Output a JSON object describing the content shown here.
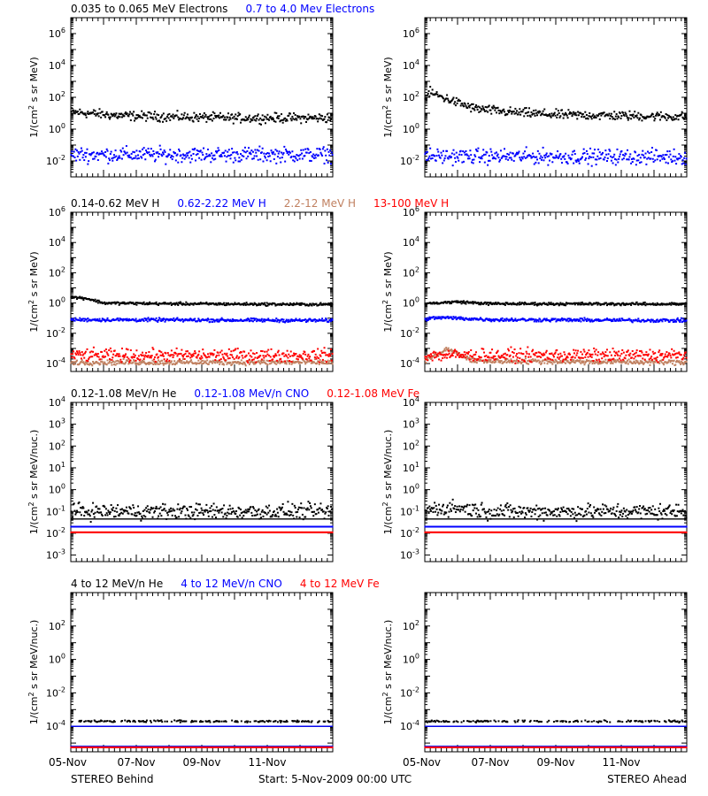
{
  "footer": {
    "left": "STEREO Behind",
    "center": "Start:  5-Nov-2009 00:00 UTC",
    "right": "STEREO Ahead"
  },
  "x_tick_labels": [
    "05-Nov",
    "07-Nov",
    "09-Nov",
    "11-Nov"
  ],
  "chart_data": [
    {
      "type": "scatter",
      "row": 1,
      "legend": [
        {
          "text": "0.035 to 0.065 MeV Electrons",
          "color": "#000000"
        },
        {
          "text": "0.7 to 4.0 Mev Electrons",
          "color": "#0000ff"
        }
      ],
      "ylabel": "1/(cm<sup>2</sup> s sr MeV)",
      "yscale": "log",
      "ylim": [
        0.001,
        10000000
      ],
      "ytick_exponents": [
        -2,
        0,
        2,
        4,
        6
      ],
      "xlim_days": [
        0,
        8
      ],
      "panels": {
        "behind": [
          {
            "name": "0.035 to 0.065 MeV Electrons",
            "color": "#000000",
            "profile": [
              [
                0,
                12
              ],
              [
                0.5,
                10
              ],
              [
                1.5,
                7
              ],
              [
                3,
                6
              ],
              [
                5,
                5
              ],
              [
                8,
                5
              ]
            ],
            "noise": 0.25
          },
          {
            "name": "0.7 to 4.0 Mev Electrons",
            "color": "#0000ff",
            "profile": [
              [
                0,
                0.025
              ],
              [
                8,
                0.025
              ]
            ],
            "noise": 0.4
          }
        ],
        "ahead": [
          {
            "name": "0.035 to 0.065 MeV Electrons",
            "color": "#000000",
            "profile": [
              [
                0,
                80
              ],
              [
                0.15,
                200
              ],
              [
                0.6,
                90
              ],
              [
                1.5,
                20
              ],
              [
                2.5,
                12
              ],
              [
                4,
                8
              ],
              [
                8,
                6
              ]
            ],
            "noise": 0.25
          },
          {
            "name": "0.7 to 4.0 Mev Electrons",
            "color": "#0000ff",
            "profile": [
              [
                0,
                0.02
              ],
              [
                8,
                0.018
              ]
            ],
            "noise": 0.4
          }
        ]
      }
    },
    {
      "type": "scatter",
      "row": 2,
      "legend": [
        {
          "text": "0.14-0.62 MeV H",
          "color": "#000000"
        },
        {
          "text": "0.62-2.22 MeV H",
          "color": "#0000ff"
        },
        {
          "text": "2.2-12 MeV H",
          "color": "#c08060"
        },
        {
          "text": "13-100 MeV H",
          "color": "#ff0000"
        }
      ],
      "ylabel": "1/(cm<sup>2</sup> s sr MeV)",
      "yscale": "log",
      "ylim": [
        3e-05,
        1000000
      ],
      "ytick_exponents": [
        -4,
        -2,
        0,
        2,
        4,
        6
      ],
      "xlim_days": [
        0,
        8
      ],
      "panels": {
        "behind": [
          {
            "name": "0.14-0.62 MeV H",
            "color": "#000000",
            "profile": [
              [
                0,
                2.5
              ],
              [
                0.5,
                2
              ],
              [
                1,
                1
              ],
              [
                3,
                0.9
              ],
              [
                8,
                0.8
              ]
            ],
            "noise": 0.08
          },
          {
            "name": "0.62-2.22 MeV H",
            "color": "#0000ff",
            "profile": [
              [
                0,
                0.08
              ],
              [
                8,
                0.07
              ]
            ],
            "noise": 0.1
          },
          {
            "name": "2.2-12 MeV H",
            "color": "#c08060",
            "profile": [
              [
                0,
                0.00012
              ],
              [
                8,
                0.00012
              ]
            ],
            "noise": 0.15
          },
          {
            "name": "13-100 MeV H",
            "color": "#ff0000",
            "profile": [
              [
                0,
                0.00035
              ],
              [
                8,
                0.00035
              ]
            ],
            "noise": 0.35
          }
        ],
        "ahead": [
          {
            "name": "0.14-0.62 MeV H",
            "color": "#000000",
            "profile": [
              [
                0,
                0.9
              ],
              [
                1,
                1.2
              ],
              [
                2,
                0.9
              ],
              [
                8,
                0.85
              ]
            ],
            "noise": 0.08
          },
          {
            "name": "0.62-2.22 MeV H",
            "color": "#0000ff",
            "profile": [
              [
                0,
                0.09
              ],
              [
                0.5,
                0.11
              ],
              [
                2,
                0.08
              ],
              [
                8,
                0.07
              ]
            ],
            "noise": 0.1
          },
          {
            "name": "2.2-12 MeV H",
            "color": "#c08060",
            "profile": [
              [
                0,
                0.00015
              ],
              [
                0.7,
                0.0009
              ],
              [
                1.5,
                0.00015
              ],
              [
                8,
                0.00012
              ]
            ],
            "noise": 0.15
          },
          {
            "name": "13-100 MeV H",
            "color": "#ff0000",
            "profile": [
              [
                0,
                0.00035
              ],
              [
                8,
                0.00035
              ]
            ],
            "noise": 0.35
          }
        ]
      }
    },
    {
      "type": "scatter",
      "row": 3,
      "legend": [
        {
          "text": "0.12-1.08 MeV/n He",
          "color": "#000000"
        },
        {
          "text": "0.12-1.08 MeV/n CNO",
          "color": "#0000ff"
        },
        {
          "text": "0.12-1.08 MeV Fe",
          "color": "#ff0000"
        }
      ],
      "ylabel": "1/(cm<sup>2</sup> s sr MeV/nuc.)",
      "yscale": "log",
      "ylim": [
        0.0005,
        10000
      ],
      "ytick_exponents": [
        -3,
        -2,
        -1,
        0,
        1,
        2,
        3,
        4
      ],
      "xlim_days": [
        0,
        8
      ],
      "panels": {
        "behind": [
          {
            "name": "0.12-1.08 MeV/n He",
            "color": "#000000",
            "profile": [
              [
                0,
                0.1
              ],
              [
                8,
                0.1
              ]
            ],
            "noise": 0.3,
            "floor": 0.045
          },
          {
            "name": "0.12-1.08 MeV/n CNO",
            "color": "#0000ff",
            "profile": [
              [
                0,
                0.02
              ],
              [
                8,
                0.02
              ]
            ],
            "noise": 0,
            "floor": 0.011
          },
          {
            "name": "0.12-1.08 MeV Fe",
            "color": "#ff0000",
            "profile": [
              [
                0,
                0.011
              ],
              [
                8,
                0.011
              ]
            ],
            "noise": 0
          }
        ],
        "ahead": [
          {
            "name": "0.12-1.08 MeV/n He",
            "color": "#000000",
            "profile": [
              [
                0,
                0.12
              ],
              [
                1,
                0.15
              ],
              [
                2,
                0.1
              ],
              [
                8,
                0.1
              ]
            ],
            "noise": 0.3,
            "floor": 0.045
          },
          {
            "name": "0.12-1.08 MeV/n CNO",
            "color": "#0000ff",
            "profile": [
              [
                0,
                0.02
              ],
              [
                8,
                0.02
              ]
            ],
            "noise": 0,
            "floor": 0.011
          },
          {
            "name": "0.12-1.08 MeV Fe",
            "color": "#ff0000",
            "profile": [
              [
                0,
                0.011
              ],
              [
                8,
                0.011
              ]
            ],
            "noise": 0
          }
        ]
      }
    },
    {
      "type": "scatter",
      "row": 4,
      "legend": [
        {
          "text": "4 to 12 MeV/n He",
          "color": "#000000"
        },
        {
          "text": "4 to 12 MeV/n CNO",
          "color": "#0000ff"
        },
        {
          "text": "4 to 12 MeV Fe",
          "color": "#ff0000"
        }
      ],
      "ylabel": "1/(cm<sup>2</sup> s sr MeV/nuc.)",
      "yscale": "log",
      "ylim": [
        3e-06,
        10000
      ],
      "ytick_exponents": [
        -4,
        -2,
        0,
        2
      ],
      "xlim_days": [
        0,
        8
      ],
      "panels": {
        "behind": [
          {
            "name": "4 to 12 MeV/n He",
            "color": "#000000",
            "profile": [
              [
                0,
                0.0002
              ],
              [
                8,
                0.0002
              ]
            ],
            "noise": 0.05,
            "sparse": true,
            "floor": 0.0001
          },
          {
            "name": "4 to 12 MeV/n CNO",
            "color": "#0000ff",
            "profile": [
              [
                0,
                6e-06
              ],
              [
                8,
                6e-06
              ]
            ],
            "noise": 0,
            "floor": 0.0001
          },
          {
            "name": "4 to 12 MeV Fe",
            "color": "#ff0000",
            "profile": [
              [
                0,
                5.5e-06
              ],
              [
                8,
                5.5e-06
              ]
            ],
            "noise": 0
          }
        ],
        "ahead": [
          {
            "name": "4 to 12 MeV/n He",
            "color": "#000000",
            "profile": [
              [
                0,
                0.0002
              ],
              [
                8,
                0.0002
              ]
            ],
            "noise": 0.05,
            "sparse": true,
            "floor": 0.0001
          },
          {
            "name": "4 to 12 MeV/n CNO",
            "color": "#0000ff",
            "profile": [
              [
                0,
                6e-06
              ],
              [
                8,
                6e-06
              ]
            ],
            "noise": 0,
            "floor": 0.0001
          },
          {
            "name": "4 to 12 MeV Fe",
            "color": "#ff0000",
            "profile": [
              [
                0,
                5.5e-06
              ],
              [
                8,
                5.5e-06
              ]
            ],
            "noise": 0
          }
        ]
      }
    }
  ]
}
